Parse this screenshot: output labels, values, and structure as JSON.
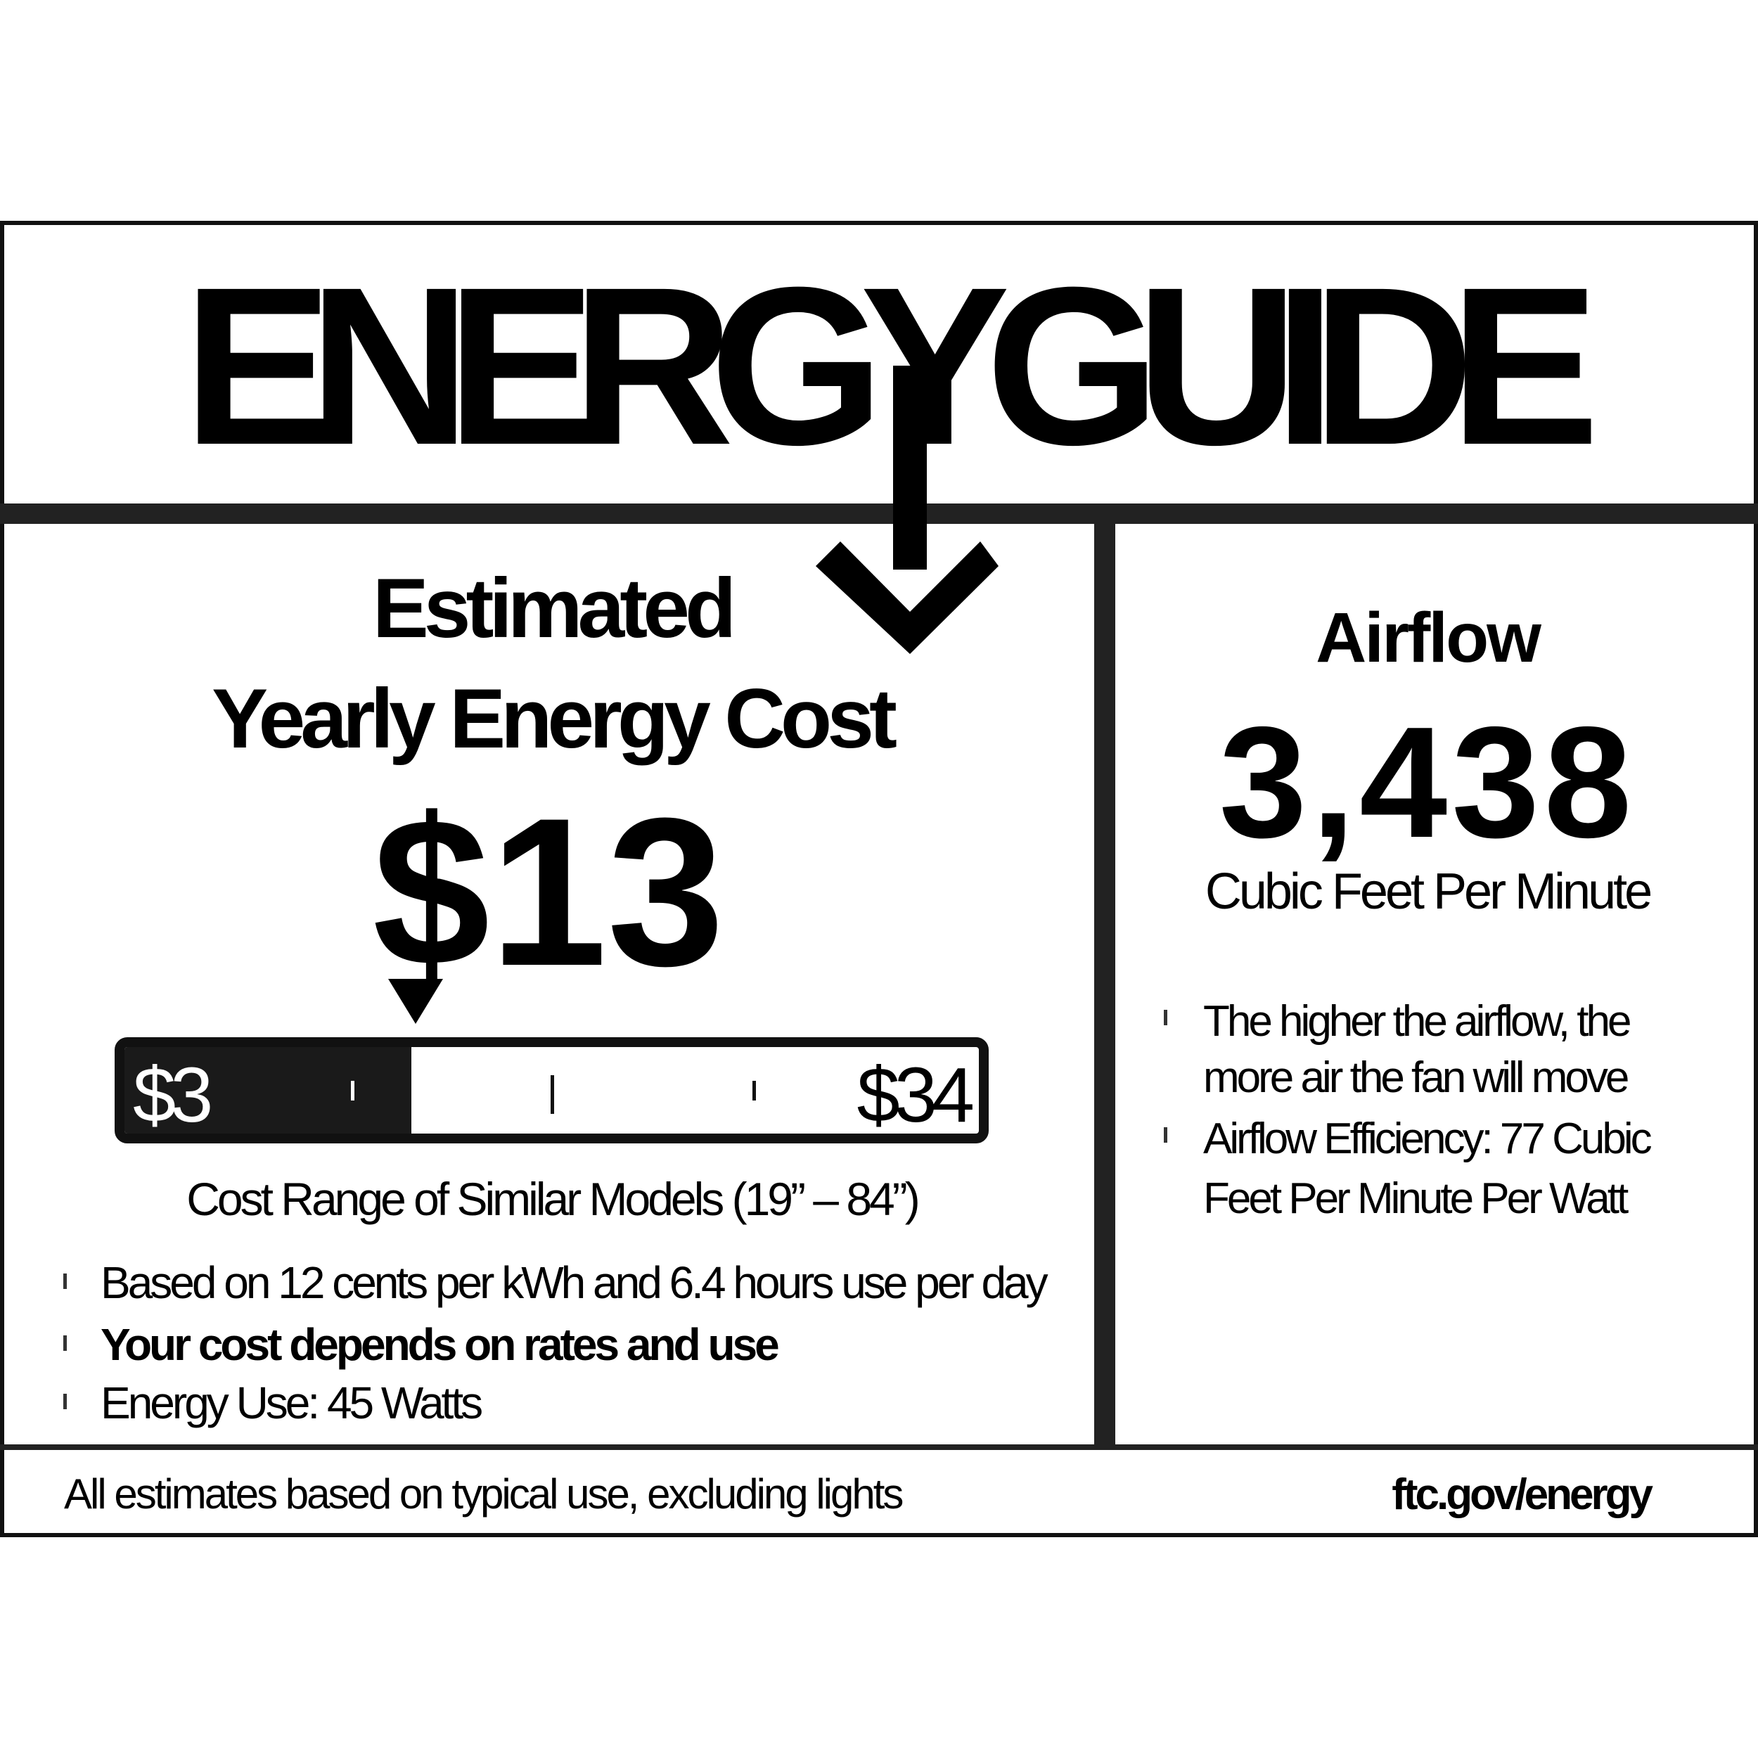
{
  "title": "ENERGYGUIDE",
  "cost": {
    "heading_line1": "Estimated",
    "heading_line2": "Yearly Energy Cost",
    "value": "$13",
    "range_min": "$3",
    "range_max": "$34",
    "marker_value": 13,
    "range_caption": "Cost Range of Similar Models (19” – 84”)",
    "bullets": [
      "Based on 12 cents per kWh and 6.4 hours use per day",
      "Your cost depends on rates and use",
      "Energy Use: 45 Watts"
    ]
  },
  "airflow": {
    "heading": "Airflow",
    "value": "3,438",
    "unit": "Cubic Feet Per Minute",
    "bullets": [
      {
        "line1": "The higher the airflow, the",
        "line2": "more air the fan will move"
      },
      {
        "line1": "Airflow Efficiency: 77 Cubic",
        "line2": "Feet Per Minute Per Watt"
      }
    ]
  },
  "footer": {
    "note": "All estimates based on typical use, excluding lights",
    "link": "ftc.gov/energy"
  },
  "colors": {
    "ink": "#000000",
    "background": "#ffffff"
  }
}
